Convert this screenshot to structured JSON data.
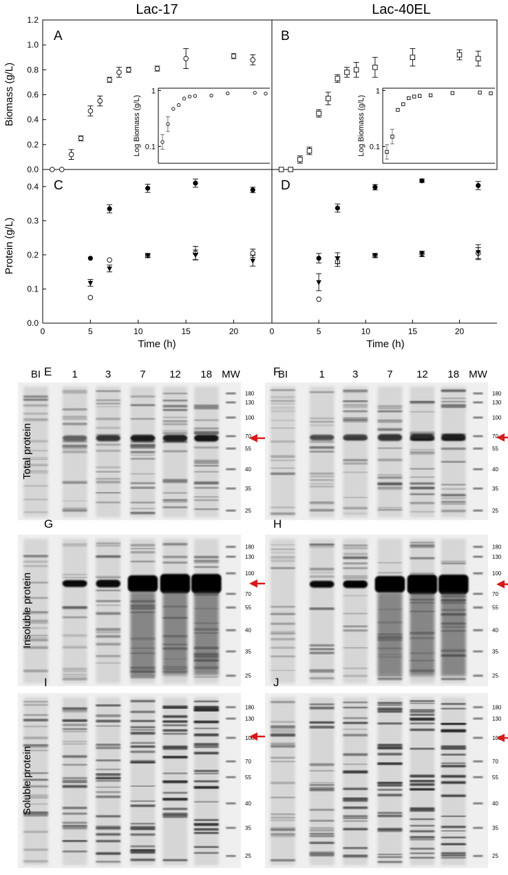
{
  "columns": [
    "Lac-17",
    "Lac-40EL"
  ],
  "panel_letters": [
    "A",
    "B",
    "C",
    "D",
    "E",
    "F",
    "G",
    "H",
    "I",
    "J"
  ],
  "chart_data": [
    {
      "panel": "A",
      "type": "scatter",
      "title": "Lac-17",
      "xlabel": "",
      "ylabel": "Biomass (g/L)",
      "xlim": [
        0,
        24
      ],
      "ylim": [
        0,
        1.2
      ],
      "yticks": [
        "0.0",
        "0.2",
        "0.4",
        "0.6",
        "0.8",
        "1.0",
        "1.2"
      ],
      "series": [
        {
          "marker": "open-circle",
          "x": [
            1,
            2,
            3,
            4,
            5,
            6,
            7,
            8,
            9,
            12,
            15,
            20,
            22
          ],
          "y": [
            0.0,
            0.0,
            0.12,
            0.25,
            0.47,
            0.55,
            0.72,
            0.78,
            0.8,
            0.81,
            0.89,
            0.91,
            0.88
          ],
          "err": [
            0,
            0,
            0.04,
            0.02,
            0.04,
            0.04,
            0.02,
            0.04,
            0.02,
            0.02,
            0.08,
            0.02,
            0.04
          ]
        }
      ],
      "inset": {
        "ylabel": "Log Biomass (g/L)",
        "yscale": "log",
        "yticks": [
          "0.1",
          "1"
        ],
        "ylim": [
          0.05,
          1.1
        ],
        "x": [
          3,
          4,
          5,
          6,
          7,
          8,
          9,
          12,
          15,
          20,
          22
        ],
        "y": [
          0.12,
          0.25,
          0.47,
          0.55,
          0.72,
          0.78,
          0.8,
          0.81,
          0.89,
          0.91,
          0.88
        ]
      }
    },
    {
      "panel": "B",
      "type": "scatter",
      "title": "Lac-40EL",
      "xlabel": "",
      "ylabel": "",
      "xlim": [
        0,
        24
      ],
      "ylim": [
        0,
        1.2
      ],
      "series": [
        {
          "marker": "open-square",
          "x": [
            1,
            2,
            3,
            4,
            5,
            6,
            7,
            8,
            9,
            11,
            15,
            20,
            22
          ],
          "y": [
            0.0,
            0.0,
            0.08,
            0.15,
            0.45,
            0.57,
            0.73,
            0.78,
            0.8,
            0.82,
            0.9,
            0.92,
            0.89
          ],
          "err": [
            0,
            0,
            0.03,
            0.03,
            0.03,
            0.05,
            0.03,
            0.04,
            0.06,
            0.08,
            0.07,
            0.04,
            0.06
          ]
        }
      ],
      "inset": {
        "ylabel": "Log Biomass (g/L)",
        "yscale": "log",
        "yticks": [
          "0.1",
          "1"
        ],
        "ylim": [
          0.05,
          1.1
        ],
        "x": [
          3,
          4,
          5,
          6,
          7,
          8,
          9,
          11,
          15,
          20,
          22
        ],
        "y": [
          0.08,
          0.15,
          0.45,
          0.57,
          0.73,
          0.78,
          0.8,
          0.82,
          0.9,
          0.92,
          0.89
        ]
      }
    },
    {
      "panel": "C",
      "type": "scatter",
      "xlabel": "Time (h)",
      "ylabel": "Protein (g/L)",
      "xlim": [
        0,
        24
      ],
      "ylim": [
        0,
        0.45
      ],
      "xticks": [
        "0",
        "5",
        "10",
        "15",
        "20"
      ],
      "yticks": [
        "0.0",
        "0.1",
        "0.2",
        "0.3",
        "0.4"
      ],
      "series": [
        {
          "marker": "filled-circle",
          "x": [
            5,
            7,
            11,
            16,
            22
          ],
          "y": [
            0.19,
            0.335,
            0.395,
            0.41,
            0.39
          ],
          "err": [
            0,
            0.012,
            0.012,
            0.012,
            0.008
          ]
        },
        {
          "marker": "open-circle",
          "x": [
            5,
            7,
            11,
            16,
            22
          ],
          "y": [
            0.075,
            0.185,
            0.198,
            0.205,
            0.205
          ],
          "err": [
            0,
            0,
            0.006,
            0.02,
            0.012
          ]
        },
        {
          "marker": "filled-triangle",
          "x": [
            5,
            7,
            11,
            16,
            22
          ],
          "y": [
            0.118,
            0.16,
            0.198,
            0.2,
            0.183
          ],
          "err": [
            0.01,
            0.01,
            0.006,
            0.014,
            0.016
          ]
        }
      ]
    },
    {
      "panel": "D",
      "type": "scatter",
      "xlabel": "Time (h)",
      "ylabel": "",
      "xlim": [
        0,
        24
      ],
      "ylim": [
        0,
        0.45
      ],
      "xticks": [
        "0",
        "5",
        "10",
        "15",
        "20"
      ],
      "series": [
        {
          "marker": "filled-circle",
          "x": [
            5,
            7,
            11,
            16,
            22
          ],
          "y": [
            0.19,
            0.337,
            0.398,
            0.417,
            0.403
          ],
          "err": [
            0.014,
            0.012,
            0.008,
            0.005,
            0.012
          ]
        },
        {
          "marker": "open-circle",
          "x": [
            5,
            7,
            11,
            16,
            22
          ],
          "y": [
            0.07,
            0.18,
            0.198,
            0.203,
            0.205
          ],
          "err": [
            0,
            0.014,
            0.006,
            0.008,
            0.016
          ]
        },
        {
          "marker": "filled-triangle",
          "x": [
            5,
            7,
            11,
            16,
            22
          ],
          "y": [
            0.12,
            0.19,
            0.198,
            0.203,
            0.208
          ],
          "err": [
            0.025,
            0.016,
            0.006,
            0.008,
            0.022
          ]
        }
      ]
    }
  ],
  "gels": {
    "lane_labels": [
      "BI",
      "1",
      "3",
      "7",
      "12",
      "18",
      "MW"
    ],
    "mw_markers": [
      "180",
      "130",
      "100",
      "70",
      "55",
      "40",
      "35",
      "25"
    ],
    "row_labels": [
      "Total protein",
      "Insoluble protein",
      "Soluble protein"
    ],
    "arrow_color": "#d81a1a"
  }
}
